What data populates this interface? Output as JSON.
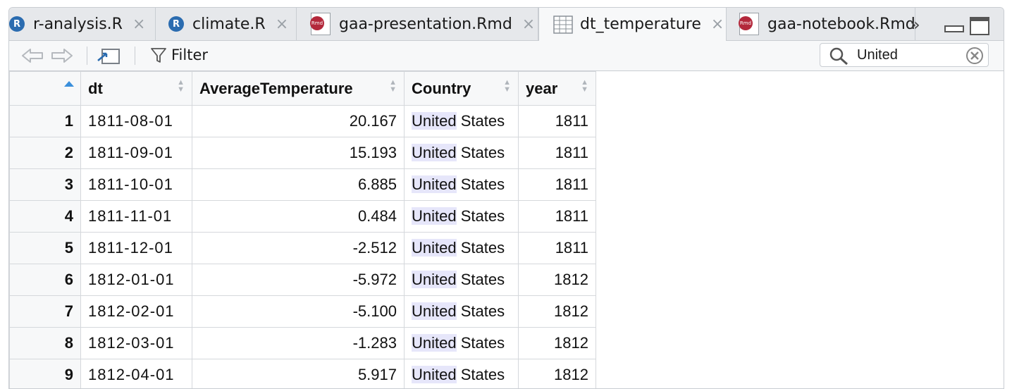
{
  "tabs": [
    {
      "label": "r-analysis.R",
      "icon": "r-file-icon"
    },
    {
      "label": "climate.R",
      "icon": "r-file-icon"
    },
    {
      "label": "gaa-presentation.Rmd",
      "icon": "rmd-file-icon"
    },
    {
      "label": "dt_temperature",
      "icon": "data-grid-icon",
      "active": true
    },
    {
      "label": "gaa-notebook.Rmd",
      "icon": "rmd-file-icon"
    }
  ],
  "tab_close": "×",
  "r_badge": "R",
  "rmd_badge": "Rmd",
  "more_tabs": "»",
  "toolbar": {
    "filter_label": "Filter"
  },
  "search": {
    "value": "United"
  },
  "table": {
    "columns": [
      "",
      "dt",
      "AverageTemperature",
      "Country",
      "year"
    ],
    "highlight": "United",
    "rows": [
      {
        "n": "1",
        "dt": "1811-08-01",
        "temp": "20.167",
        "country_match": "United",
        "country_rest": " States",
        "year": "1811"
      },
      {
        "n": "2",
        "dt": "1811-09-01",
        "temp": "15.193",
        "country_match": "United",
        "country_rest": " States",
        "year": "1811"
      },
      {
        "n": "3",
        "dt": "1811-10-01",
        "temp": "6.885",
        "country_match": "United",
        "country_rest": " States",
        "year": "1811"
      },
      {
        "n": "4",
        "dt": "1811-11-01",
        "temp": "0.484",
        "country_match": "United",
        "country_rest": " States",
        "year": "1811"
      },
      {
        "n": "5",
        "dt": "1811-12-01",
        "temp": "-2.512",
        "country_match": "United",
        "country_rest": " States",
        "year": "1811"
      },
      {
        "n": "6",
        "dt": "1812-01-01",
        "temp": "-5.972",
        "country_match": "United",
        "country_rest": " States",
        "year": "1812"
      },
      {
        "n": "7",
        "dt": "1812-02-01",
        "temp": "-5.100",
        "country_match": "United",
        "country_rest": " States",
        "year": "1812"
      },
      {
        "n": "8",
        "dt": "1812-03-01",
        "temp": "-1.283",
        "country_match": "United",
        "country_rest": " States",
        "year": "1812"
      },
      {
        "n": "9",
        "dt": "1812-04-01",
        "temp": "5.917",
        "country_match": "United",
        "country_rest": " States",
        "year": "1812"
      }
    ]
  },
  "colors": {
    "accent": "#2b6cb0",
    "rmd_badge": "#b3283b",
    "highlight": "#e6e6fa"
  }
}
